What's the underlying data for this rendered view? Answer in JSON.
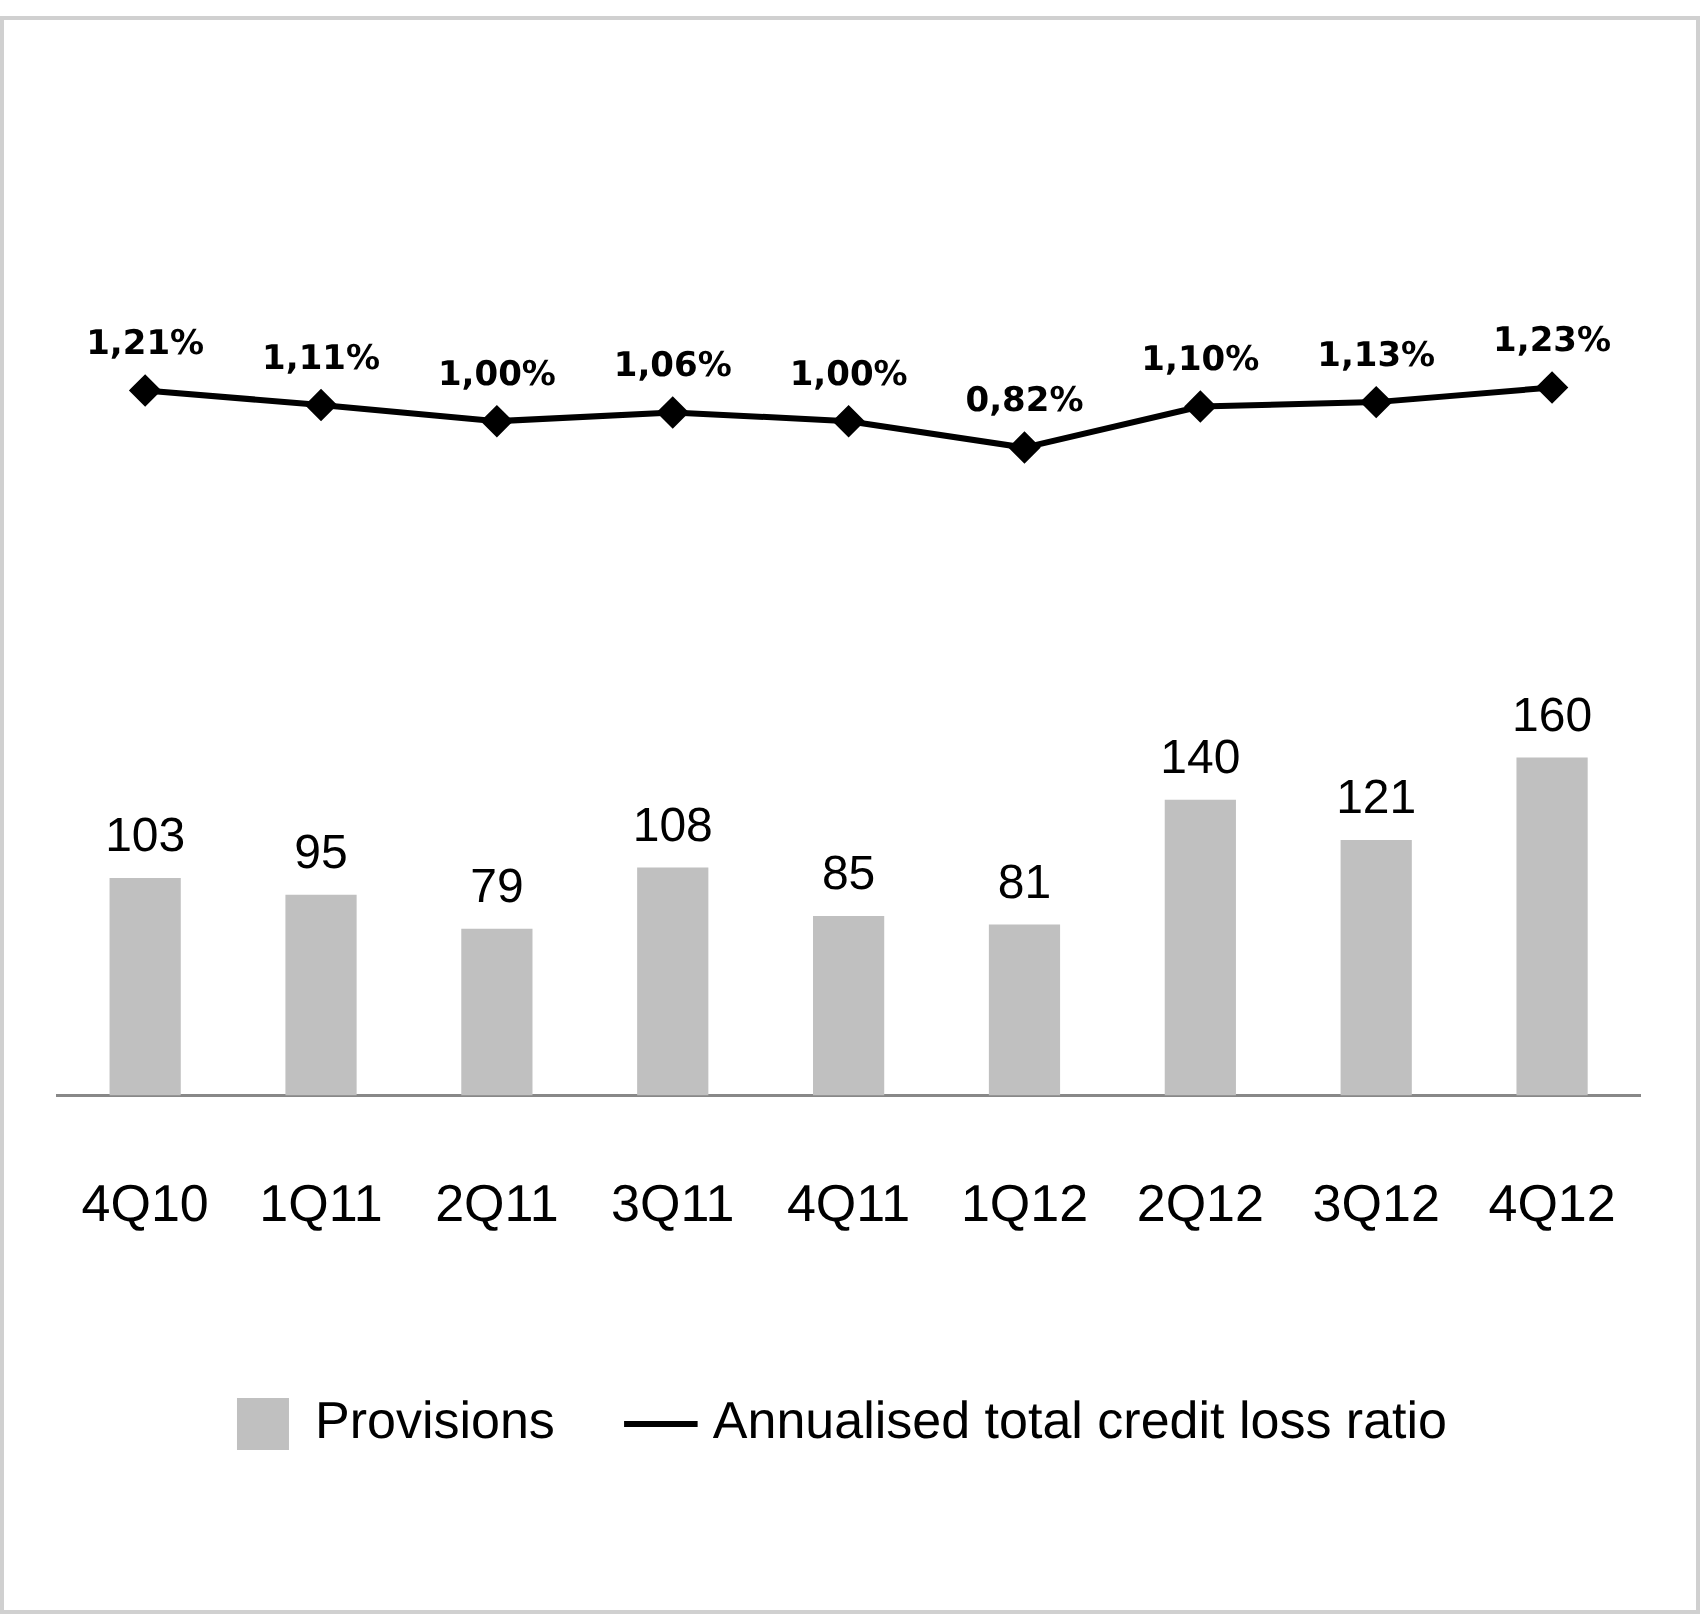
{
  "chart_data": {
    "type": "bar",
    "categories": [
      "4Q10",
      "1Q11",
      "2Q11",
      "3Q11",
      "4Q11",
      "1Q12",
      "2Q12",
      "3Q12",
      "4Q12"
    ],
    "series": [
      {
        "name": "Provisions",
        "color": "#c0c0c0",
        "values": [
          103,
          95,
          79,
          108,
          85,
          81,
          140,
          121,
          160
        ],
        "value_labels": [
          "103",
          "95",
          "79",
          "108",
          "85",
          "81",
          "140",
          "121",
          "160"
        ]
      },
      {
        "name": "Annualised total credit loss ratio",
        "type": "line",
        "axis": "y2",
        "color": "#000000",
        "values": [
          1.21,
          1.11,
          1.0,
          1.06,
          1.0,
          0.82,
          1.1,
          1.13,
          1.23
        ],
        "value_labels": [
          "1,21%",
          "1,11%",
          "1,00%",
          "1,06%",
          "1,00%",
          "0,82%",
          "1,10%",
          "1,13%",
          "1,23%"
        ]
      }
    ],
    "ylim": [
      0,
      510
    ],
    "y2lim": [
      -3.6,
      3.75
    ],
    "legend": "bottom",
    "grid": false,
    "marker": "diamond",
    "line_style": "solid",
    "tick_labels": "x"
  }
}
